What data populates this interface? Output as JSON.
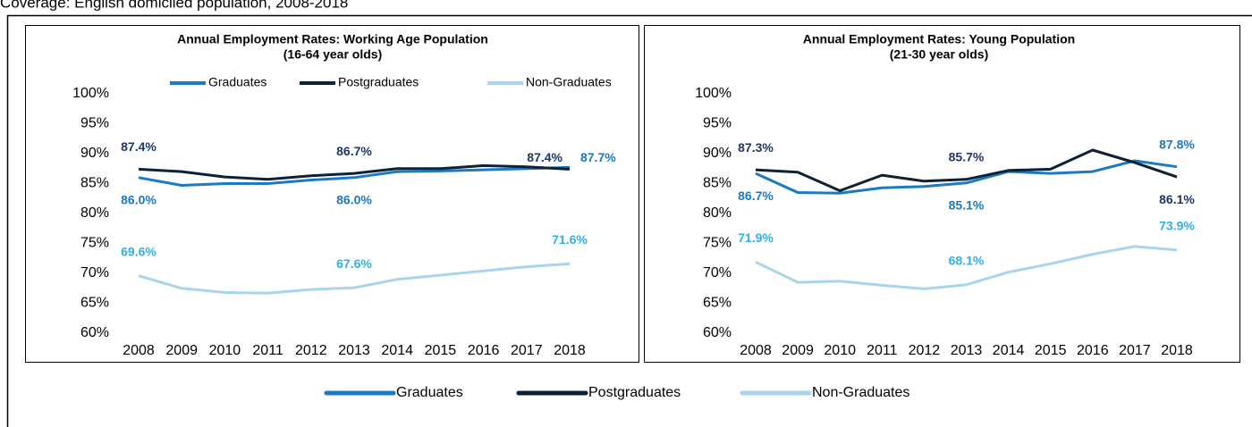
{
  "header": {
    "coverage": "Coverage: English domiciled population, 2008-2018"
  },
  "chart_data": [
    {
      "type": "line",
      "title": "Annual Employment Rates: Working Age Population",
      "subtitle": "(16-64 year olds)",
      "categories": [
        "2008",
        "2009",
        "2010",
        "2011",
        "2012",
        "2013",
        "2014",
        "2015",
        "2016",
        "2017",
        "2018"
      ],
      "ylim": [
        60,
        100
      ],
      "yticks": [
        {
          "value": 60,
          "label": "60%"
        },
        {
          "value": 65,
          "label": "65%"
        },
        {
          "value": 70,
          "label": "70%"
        },
        {
          "value": 75,
          "label": "75%"
        },
        {
          "value": 80,
          "label": "80%"
        },
        {
          "value": 85,
          "label": "85%"
        },
        {
          "value": 90,
          "label": "90%"
        },
        {
          "value": 95,
          "label": "95%"
        },
        {
          "value": 100,
          "label": "100%"
        }
      ],
      "grid": false,
      "legend": "top",
      "series": [
        {
          "name": "Graduates",
          "color": "#1a7ac4",
          "label_color": "#1a7ac4",
          "values": [
            86.0,
            84.7,
            85.0,
            85.0,
            85.6,
            86.0,
            87.0,
            87.1,
            87.3,
            87.5,
            87.7
          ],
          "value_labels": [
            "86.0%",
            null,
            null,
            null,
            null,
            "86.0%",
            null,
            null,
            null,
            null,
            "87.7%"
          ]
        },
        {
          "name": "Postgraduates",
          "color": "#0d2236",
          "label_color": "#1f3864",
          "values": [
            87.4,
            87.0,
            86.1,
            85.7,
            86.3,
            86.7,
            87.5,
            87.5,
            88.0,
            87.8,
            87.4
          ],
          "value_labels": [
            "87.4%",
            null,
            null,
            null,
            null,
            "86.7%",
            null,
            null,
            null,
            null,
            "87.4%"
          ]
        },
        {
          "name": "Non-Graduates",
          "color": "#a8d4f0",
          "label_color": "#2fb0e6",
          "values": [
            69.6,
            67.5,
            66.8,
            66.7,
            67.3,
            67.6,
            69.0,
            69.7,
            70.4,
            71.1,
            71.6
          ],
          "value_labels": [
            "69.6%",
            null,
            null,
            null,
            null,
            "67.6%",
            null,
            null,
            null,
            null,
            "71.6%"
          ]
        }
      ]
    },
    {
      "type": "line",
      "title": "Annual Employment Rates: Young Population",
      "subtitle": "(21-30 year olds)",
      "categories": [
        "2008",
        "2009",
        "2010",
        "2011",
        "2012",
        "2013",
        "2014",
        "2015",
        "2016",
        "2017",
        "2018"
      ],
      "ylim": [
        60,
        100
      ],
      "yticks": [
        {
          "value": 60,
          "label": "60%"
        },
        {
          "value": 65,
          "label": "65%"
        },
        {
          "value": 70,
          "label": "70%"
        },
        {
          "value": 75,
          "label": "75%"
        },
        {
          "value": 80,
          "label": "80%"
        },
        {
          "value": 85,
          "label": "85%"
        },
        {
          "value": 90,
          "label": "90%"
        },
        {
          "value": 95,
          "label": "95%"
        },
        {
          "value": 100,
          "label": "100%"
        }
      ],
      "grid": false,
      "legend": "bottom",
      "series": [
        {
          "name": "Graduates",
          "color": "#1a7ac4",
          "label_color": "#1a7ac4",
          "values": [
            86.7,
            83.5,
            83.4,
            84.3,
            84.5,
            85.1,
            87.0,
            86.7,
            87.0,
            88.8,
            87.8
          ],
          "value_labels": [
            "86.7%",
            null,
            null,
            null,
            null,
            "85.1%",
            null,
            null,
            null,
            null,
            "87.8%"
          ]
        },
        {
          "name": "Postgraduates",
          "color": "#0d2236",
          "label_color": "#1f3864",
          "values": [
            87.3,
            86.9,
            83.8,
            86.4,
            85.4,
            85.7,
            87.2,
            87.4,
            90.6,
            88.5,
            86.1
          ],
          "value_labels": [
            "87.3%",
            null,
            null,
            null,
            null,
            "85.7%",
            null,
            null,
            null,
            null,
            "86.1%"
          ]
        },
        {
          "name": "Non-Graduates",
          "color": "#a8d4f0",
          "label_color": "#2fb0e6",
          "values": [
            71.9,
            68.5,
            68.7,
            68.0,
            67.4,
            68.1,
            70.2,
            71.6,
            73.2,
            74.5,
            73.9
          ],
          "value_labels": [
            "71.9%",
            null,
            null,
            null,
            null,
            "68.1%",
            null,
            null,
            null,
            null,
            "73.9%"
          ]
        }
      ]
    }
  ]
}
